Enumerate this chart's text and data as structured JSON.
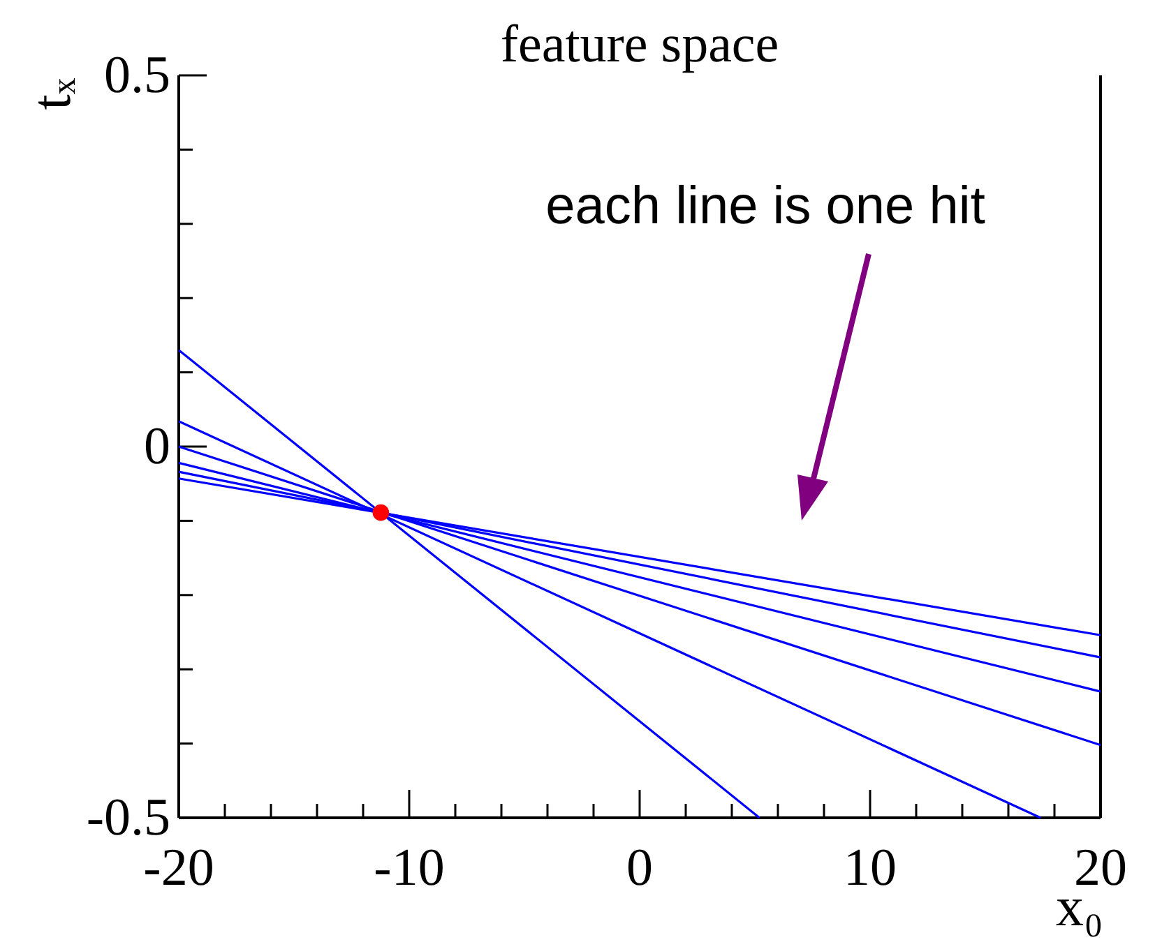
{
  "chart_data": {
    "type": "line",
    "title": "feature space",
    "xlabel": "x₀",
    "ylabel": "tₓ",
    "annotations": [
      "each line is one hit"
    ],
    "xlim": [
      -20,
      20
    ],
    "xticks": [
      -20,
      {
        "value": -18,
        "label": null
      },
      {
        "value": -16,
        "label": null
      },
      {
        "value": -14,
        "label": null
      },
      {
        "value": -12,
        "label": null
      },
      -10,
      {
        "value": -8,
        "label": null
      },
      {
        "value": -6,
        "label": null
      },
      {
        "value": -4,
        "label": null
      },
      {
        "value": -2,
        "label": null
      },
      0,
      {
        "value": 2,
        "label": null
      },
      {
        "value": 4,
        "label": null
      },
      {
        "value": 6,
        "label": null
      },
      {
        "value": 8,
        "label": null
      },
      10,
      {
        "value": 12,
        "label": null
      },
      {
        "value": 14,
        "label": null
      },
      {
        "value": 16,
        "label": null
      },
      {
        "value": 18,
        "label": null
      },
      20
    ],
    "ylim": [
      -0.5,
      0.5
    ],
    "yticks": [
      -0.5,
      {
        "value": -0.4,
        "label": null
      },
      {
        "value": -0.3,
        "label": null
      },
      {
        "value": -0.2,
        "label": null
      },
      {
        "value": -0.1,
        "label": null
      },
      0,
      {
        "value": 0.1,
        "label": null
      },
      {
        "value": 0.2,
        "label": null
      },
      {
        "value": 0.3,
        "label": null
      },
      {
        "value": 0.4,
        "label": null
      },
      0.5
    ],
    "grid": false,
    "marker": "none",
    "line_style": "solid",
    "series": [
      {
        "color": "#0000ff",
        "x": [
          -20,
          5.2
        ],
        "values": [
          0.13,
          -0.5
        ]
      },
      {
        "color": "#0000ff",
        "x": [
          -20,
          17.4
        ],
        "values": [
          0.034,
          -0.5
        ]
      },
      {
        "color": "#0000ff",
        "x": [
          -20,
          20
        ],
        "values": [
          0.0,
          -0.402
        ]
      },
      {
        "color": "#0000ff",
        "x": [
          -20,
          20
        ],
        "values": [
          -0.022,
          -0.33
        ]
      },
      {
        "color": "#0000ff",
        "x": [
          -20,
          20
        ],
        "values": [
          -0.034,
          -0.284
        ]
      },
      {
        "color": "#0000ff",
        "x": [
          -20,
          20
        ],
        "values": [
          -0.043,
          -0.254
        ]
      },
      {
        "type": "scatter",
        "marker": "circle",
        "color": "#ff0000",
        "x": [
          -11.23
        ],
        "values": [
          -0.089
        ]
      }
    ]
  }
}
